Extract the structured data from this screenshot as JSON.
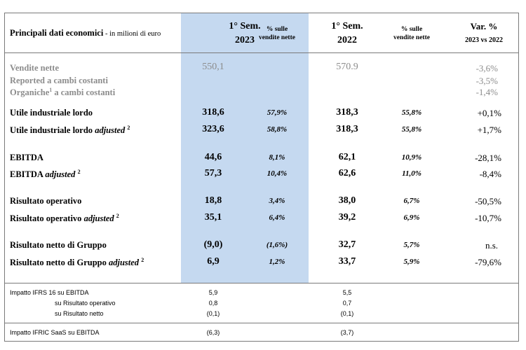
{
  "header": {
    "title_bold": "Principali dati economici",
    "title_small": " - in milioni di euro",
    "col_2023_line1": "1° Sem.",
    "col_2023_line2": "2023",
    "col_pct_2023_line1": "% sulle",
    "col_pct_2023_line2": "vendite nette",
    "col_2022_line1": "1° Sem.",
    "col_2022_line2": "2022",
    "col_pct_2022_line1": "% sulle",
    "col_pct_2022_line2": "vendite nette",
    "col_var_line1": "Var. %",
    "col_var_line2": "2023 vs 2022"
  },
  "rows": [
    {
      "label": "Vendite nette",
      "v2023": "550,1",
      "p2023": "",
      "v2022": "570.9",
      "p2022": "",
      "var": "-3,6%"
    },
    {
      "label": "Reported a cambi costanti",
      "var": "-3,5%"
    },
    {
      "label": "Organiche",
      "label_sup": "1",
      "label_tail": " a cambi costanti",
      "var": "-1,4%"
    },
    {
      "label": "Utile industriale lordo",
      "v2023": "318,6",
      "p2023": "57,9%",
      "v2022": "318,3",
      "p2022": "55,8%",
      "var": "+0,1%"
    },
    {
      "label": "Utile industriale lordo ",
      "label_em": "adjusted",
      "label_sup": "2",
      "v2023": "323,6",
      "p2023": "58,8%",
      "v2022": "318,3",
      "p2022": "55,8%",
      "var": "+1,7%"
    },
    {
      "label": "EBITDA",
      "v2023": "44,6",
      "p2023": "8,1%",
      "v2022": "62,1",
      "p2022": "10,9%",
      "var": "-28,1%"
    },
    {
      "label": "EBITDA ",
      "label_em": "adjusted",
      "label_sup": "2",
      "v2023": "57,3",
      "p2023": "10,4%",
      "v2022": "62,6",
      "p2022": "11,0%",
      "var": "-8,4%"
    },
    {
      "label": "Risultato operativo",
      "v2023": "18,8",
      "p2023": "3,4%",
      "v2022": "38,0",
      "p2022": "6,7%",
      "var": "-50,5%"
    },
    {
      "label": "Risultato operativo ",
      "label_em": "adjusted",
      "label_sup": "2",
      "v2023": "35,1",
      "p2023": "6,4%",
      "v2022": "39,2",
      "p2022": "6,9%",
      "var": "-10,7%"
    },
    {
      "label": "Risultato netto di Gruppo",
      "v2023": "(9,0)",
      "p2023": "(1,6%)",
      "v2022": "32,7",
      "p2022": "5,7%",
      "var": "n.s."
    },
    {
      "label": "Risultato netto di Gruppo ",
      "label_em": "adjusted",
      "label_sup": "2",
      "v2023": "6,9",
      "p2023": "1,2%",
      "v2022": "33,7",
      "p2022": "5,9%",
      "var": "-79,6%"
    }
  ],
  "footer": [
    {
      "label": "Impatto IFRS 16 su EBITDA",
      "v2023": "5,9",
      "v2022": "5,5"
    },
    {
      "label": "su Risultato operativo",
      "v2023": "0,8",
      "v2022": "0,7"
    },
    {
      "label": "su Risultato netto",
      "v2023": "(0,1)",
      "v2022": "(0,1)"
    },
    {
      "label": "Impatto IFRIC SaaS su EBITDA",
      "v2023": "(6,3)",
      "v2022": "(3,7)"
    }
  ]
}
